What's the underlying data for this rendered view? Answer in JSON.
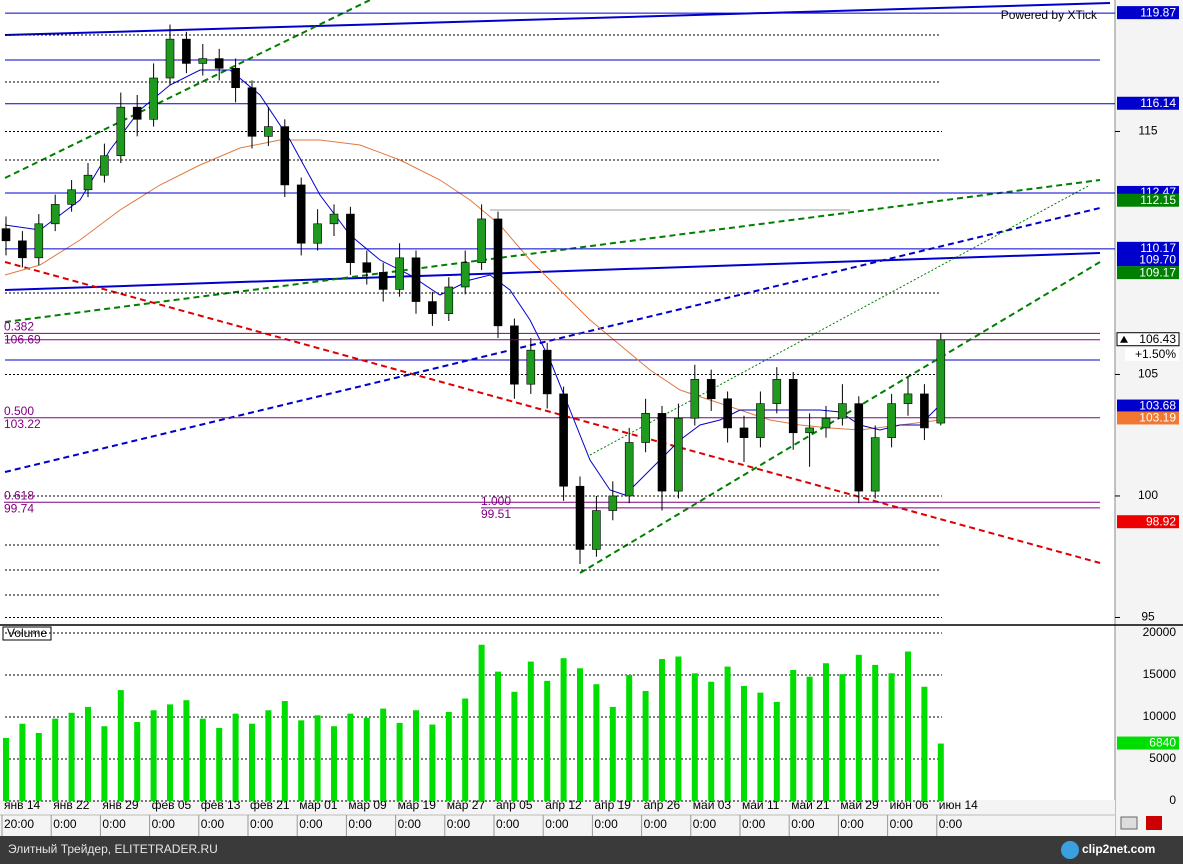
{
  "chart_data": {
    "type": "candlestick",
    "watermark": "Powered by XTick",
    "categories": [
      "янв 14",
      null,
      null,
      "янв 22",
      null,
      null,
      "янв 29",
      null,
      null,
      "фев 05",
      null,
      null,
      "фев 13",
      null,
      null,
      "фев 21",
      null,
      null,
      "мар 01",
      null,
      null,
      "мар 09",
      null,
      null,
      "мар 19",
      null,
      null,
      "мар 27",
      null,
      null,
      "апр 05",
      null,
      null,
      "апр 12",
      null,
      null,
      "апр 19",
      null,
      null,
      "апр 26",
      null,
      null,
      "май 03",
      null,
      null,
      "май 11",
      null,
      null,
      "май 21",
      null,
      null,
      "май 29",
      null,
      null,
      "июн 06",
      null,
      null,
      "июн 14"
    ],
    "times": [
      "20:00",
      null,
      null,
      "0:00",
      null,
      null,
      "0:00",
      null,
      null,
      "0:00",
      null,
      null,
      "0:00",
      null,
      null,
      "0:00",
      null,
      null,
      "0:00",
      null,
      null,
      "0:00",
      null,
      null,
      "0:00",
      null,
      null,
      "0:00",
      null,
      null,
      "0:00",
      null,
      null,
      "0:00",
      null,
      null,
      "0:00",
      null,
      null,
      "0:00",
      null,
      null,
      "0:00",
      null,
      null,
      "0:00",
      null,
      null,
      "0:00",
      null,
      null,
      "0:00",
      null,
      null,
      "0:00",
      null,
      null,
      "0:00"
    ],
    "open": [
      111.0,
      110.5,
      109.8,
      111.2,
      112.0,
      112.6,
      113.2,
      114.0,
      116.0,
      115.5,
      117.2,
      118.8,
      117.8,
      118.0,
      117.6,
      116.8,
      114.8,
      115.2,
      112.8,
      110.4,
      111.2,
      111.6,
      109.6,
      109.2,
      108.5,
      109.8,
      108.0,
      107.5,
      108.6,
      109.6,
      111.4,
      107.0,
      104.6,
      106.0,
      104.2,
      100.4,
      97.8,
      99.4,
      100.0,
      102.2,
      103.4,
      100.2,
      103.2,
      104.8,
      104.0,
      102.8,
      102.4,
      103.8,
      104.8,
      102.6,
      102.8,
      103.2,
      103.8,
      100.2,
      102.4,
      103.8,
      104.2,
      103.0
    ],
    "high": [
      111.5,
      110.9,
      111.6,
      112.4,
      113.0,
      113.7,
      114.5,
      116.6,
      116.5,
      117.8,
      119.4,
      119.1,
      118.6,
      118.4,
      118.0,
      117.1,
      116.0,
      115.5,
      113.1,
      111.8,
      112.0,
      111.9,
      110.1,
      109.6,
      110.4,
      110.1,
      108.4,
      109.0,
      110.1,
      112.0,
      111.7,
      107.3,
      106.5,
      106.3,
      104.5,
      100.8,
      100.0,
      100.6,
      102.8,
      104.0,
      103.7,
      103.8,
      105.4,
      105.2,
      104.3,
      103.3,
      104.3,
      105.3,
      105.1,
      103.4,
      103.7,
      104.6,
      104.1,
      102.9,
      104.2,
      104.9,
      104.6,
      106.7
    ],
    "low": [
      109.9,
      109.4,
      109.5,
      110.9,
      111.7,
      112.3,
      112.9,
      113.7,
      114.8,
      115.2,
      116.9,
      117.4,
      117.3,
      117.1,
      116.2,
      114.3,
      114.4,
      112.3,
      109.9,
      110.1,
      110.7,
      109.1,
      108.7,
      108.0,
      108.2,
      107.5,
      107.0,
      107.2,
      108.3,
      109.3,
      106.5,
      104.0,
      104.2,
      103.6,
      99.8,
      97.2,
      97.5,
      99.0,
      99.7,
      101.8,
      99.4,
      99.9,
      102.9,
      103.5,
      102.2,
      101.4,
      102.0,
      103.4,
      101.9,
      101.2,
      102.4,
      102.9,
      99.7,
      99.9,
      102.0,
      103.3,
      102.3,
      102.9
    ],
    "close": [
      110.5,
      109.8,
      111.2,
      112.0,
      112.6,
      113.2,
      114.0,
      116.0,
      115.5,
      117.2,
      118.8,
      117.8,
      118.0,
      117.6,
      116.8,
      114.8,
      115.2,
      112.8,
      110.4,
      111.2,
      111.6,
      109.6,
      109.2,
      108.5,
      109.8,
      108.0,
      107.5,
      108.6,
      109.6,
      111.4,
      107.0,
      104.6,
      106.0,
      104.2,
      100.4,
      97.8,
      99.4,
      100.0,
      102.2,
      103.4,
      100.2,
      103.2,
      104.8,
      104.0,
      102.8,
      102.4,
      103.8,
      104.8,
      102.6,
      102.8,
      103.2,
      103.8,
      100.2,
      102.4,
      103.8,
      104.2,
      102.8,
      106.43
    ],
    "up_color": "#1f9a1f",
    "down_color": "#000000",
    "change": "+1.50%",
    "ylim": [
      94.69,
      120.41
    ],
    "yticks": [
      95,
      100,
      105,
      115
    ],
    "grid": true,
    "levels": [
      {
        "value": 119.87,
        "label": "119.87",
        "color": "#0000cc",
        "line": true
      },
      {
        "value": 116.14,
        "label": "116.14",
        "color": "#0000cc",
        "line": true
      },
      {
        "value": 112.47,
        "label": "112.47",
        "color": "#0000cc",
        "line": true
      },
      {
        "value": 112.15,
        "label": "112.15",
        "color": "#008000",
        "line": false
      },
      {
        "value": 110.17,
        "label": "110.17",
        "color": "#0000cc",
        "line": true
      },
      {
        "value": 109.7,
        "label": "109.70",
        "color": "#0000cc",
        "line": false
      },
      {
        "value": 109.17,
        "label": "109.17",
        "color": "#008000",
        "line": false
      },
      {
        "value": 103.68,
        "label": "103.68",
        "color": "#0000cc",
        "line": false
      },
      {
        "value": 103.19,
        "label": "103.19",
        "color": "#f07830",
        "line": false
      },
      {
        "value": 98.92,
        "label": "98.92",
        "color": "#ee0000",
        "line": false
      }
    ],
    "fibonacci": [
      {
        "ratio": {
          "value": 0.382,
          "label": "0.382"
        },
        "price": 106.69
      },
      {
        "ratio": {
          "value": 0.5,
          "label": "0.500"
        },
        "price": 103.22
      },
      {
        "ratio": {
          "value": 0.618,
          "label": "0.618"
        },
        "price": 99.74
      },
      {
        "ratio": {
          "value": 1,
          "label": "1.000"
        },
        "price": 99.51
      }
    ],
    "fib_color": "#800080",
    "volume": {
      "label": "Volume",
      "color": "#00dd00",
      "values": [
        7500,
        9200,
        8100,
        9800,
        10500,
        11200,
        8900,
        13200,
        9400,
        10800,
        11500,
        12000,
        9800,
        8700,
        10400,
        9200,
        10800,
        11900,
        9600,
        10200,
        8900,
        10400,
        9900,
        11000,
        9300,
        10800,
        9100,
        10600,
        12200,
        18600,
        15400,
        13000,
        16600,
        14300,
        17000,
        15800,
        13900,
        11200,
        15000,
        13100,
        16900,
        17200,
        15200,
        14200,
        16000,
        13700,
        12900,
        11800,
        15600,
        14800,
        16400,
        15100,
        17400,
        16200,
        15200,
        17800,
        13600,
        6840
      ],
      "ylim": [
        -1667,
        20833
      ],
      "yticks": [
        0,
        5000,
        10000,
        15000,
        20000
      ]
    }
  },
  "footer": {
    "source": "Элитный Трейдер, ELITETRADER.RU",
    "logo": "clip2net.com"
  }
}
